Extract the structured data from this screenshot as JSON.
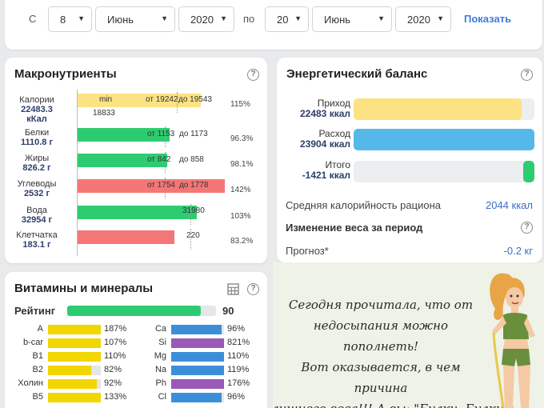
{
  "period": {
    "from_label": "С",
    "from_day": "8",
    "from_month": "Июнь",
    "from_year": "2020",
    "to_label": "по",
    "to_day": "20",
    "to_month": "Июнь",
    "to_year": "2020",
    "show_label": "Показать"
  },
  "macro": {
    "title": "Макронутриенты",
    "help": "?",
    "rows": [
      {
        "name": "Калории",
        "value": "22483.3",
        "unit": "кКал",
        "pct": "115%",
        "note": "min",
        "note2": "18833",
        "range_from": "от 19242",
        "range_to": "до 19543",
        "current": "",
        "color": "#fbe283",
        "fill": 0.83
      },
      {
        "name": "Белки",
        "value": "1110.8 г",
        "unit": "",
        "pct": "96.3%",
        "note": "",
        "note2": "",
        "range_from": "от 1153",
        "range_to": "до 1173",
        "current": "",
        "color": "#2ecc71",
        "fill": 0.62
      },
      {
        "name": "Жиры",
        "value": "826.2 г",
        "unit": "",
        "pct": "98.1%",
        "note": "",
        "note2": "",
        "range_from": "от 842",
        "range_to": "до 858",
        "current": "",
        "color": "#2ecc71",
        "fill": 0.6
      },
      {
        "name": "Углеводы",
        "value": "2532 г",
        "unit": "",
        "pct": "142%",
        "note": "",
        "note2": "",
        "range_from": "от 1754",
        "range_to": "до 1778",
        "current": "",
        "color": "#f47676",
        "fill": 0.99
      },
      {
        "name": "Вода",
        "value": "32954 г",
        "unit": "",
        "pct": "103%",
        "note": "",
        "note2": "",
        "range_from": "",
        "range_to": "",
        "current": "31980",
        "color": "#2ecc71",
        "fill": 0.8
      },
      {
        "name": "Клетчатка",
        "value": "183.1 г",
        "unit": "",
        "pct": "83.2%",
        "note": "",
        "note2": "",
        "range_from": "",
        "range_to": "",
        "current": "220",
        "color": "#f47676",
        "fill": 0.65
      }
    ]
  },
  "energy": {
    "title": "Энергетический баланс",
    "help": "?",
    "income_label": "Приход",
    "income_value": "22483 ккал",
    "income_fill": 0.93,
    "outcome_label": "Расход",
    "outcome_value": "23904 ккал",
    "outcome_fill": 1.0,
    "total_label": "Итого",
    "total_value": "-1421 ккал",
    "total_fill": 0.06,
    "avg_label": "Средняя калорийность рациона",
    "avg_value": "2044 ккал",
    "weight_label": "Изменение веса за период",
    "forecast_label": "Прогноз*",
    "forecast_value": "-0.2 кг",
    "colors": {
      "income": "#fbe283",
      "outcome": "#54b9e9",
      "total": "#2ecc71"
    }
  },
  "vitamins": {
    "title": "Витамины и минералы",
    "help": "?",
    "rating_label": "Рейтинг",
    "rating_value": "90",
    "rating_fill": 0.9,
    "left": [
      {
        "name": "A",
        "pct": "187%",
        "color": "#f2d600",
        "fill": 1.0
      },
      {
        "name": "b-car",
        "pct": "107%",
        "color": "#f2d600",
        "fill": 1.0
      },
      {
        "name": "B1",
        "pct": "110%",
        "color": "#f2d600",
        "fill": 1.0
      },
      {
        "name": "B2",
        "pct": "82%",
        "color": "#f2d600",
        "fill": 0.82
      },
      {
        "name": "Холин",
        "pct": "92%",
        "color": "#f2d600",
        "fill": 0.92
      },
      {
        "name": "B5",
        "pct": "133%",
        "color": "#f2d600",
        "fill": 1.0
      }
    ],
    "right": [
      {
        "name": "Ca",
        "pct": "96%",
        "color": "#3b8fd9",
        "fill": 0.96
      },
      {
        "name": "Si",
        "pct": "821%",
        "color": "#9b59b6",
        "fill": 1.0
      },
      {
        "name": "Mg",
        "pct": "110%",
        "color": "#3b8fd9",
        "fill": 1.0
      },
      {
        "name": "Na",
        "pct": "119%",
        "color": "#3b8fd9",
        "fill": 1.0
      },
      {
        "name": "Ph",
        "pct": "176%",
        "color": "#9b59b6",
        "fill": 1.0
      },
      {
        "name": "Cl",
        "pct": "96%",
        "color": "#3b8fd9",
        "fill": 0.96
      }
    ]
  },
  "meme": {
    "line1": "Сегодня прочитала, что от",
    "line2": "недосыпания можно пополнеть!",
    "line3": "Вот оказывается, в чем причина",
    "line4": "лишнего веса!!! А вы: \"Булки, Булки\")"
  }
}
